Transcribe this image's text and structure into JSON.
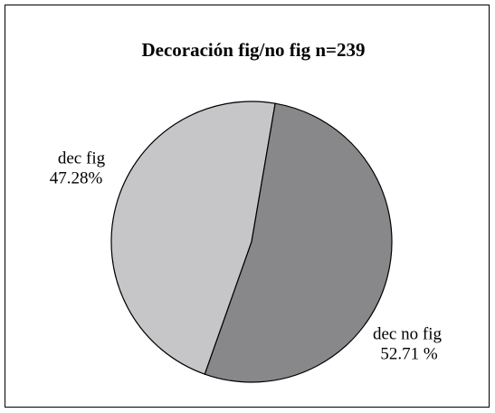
{
  "chart_data": {
    "type": "pie",
    "title": "Decoración fig/no fig n=239",
    "categories": [
      "dec fig",
      "dec no fig"
    ],
    "values": [
      47.28,
      52.71
    ],
    "value_labels": [
      "47.28%",
      "52.71 %"
    ],
    "colors": [
      "#c6c6c8",
      "#88888a"
    ]
  }
}
